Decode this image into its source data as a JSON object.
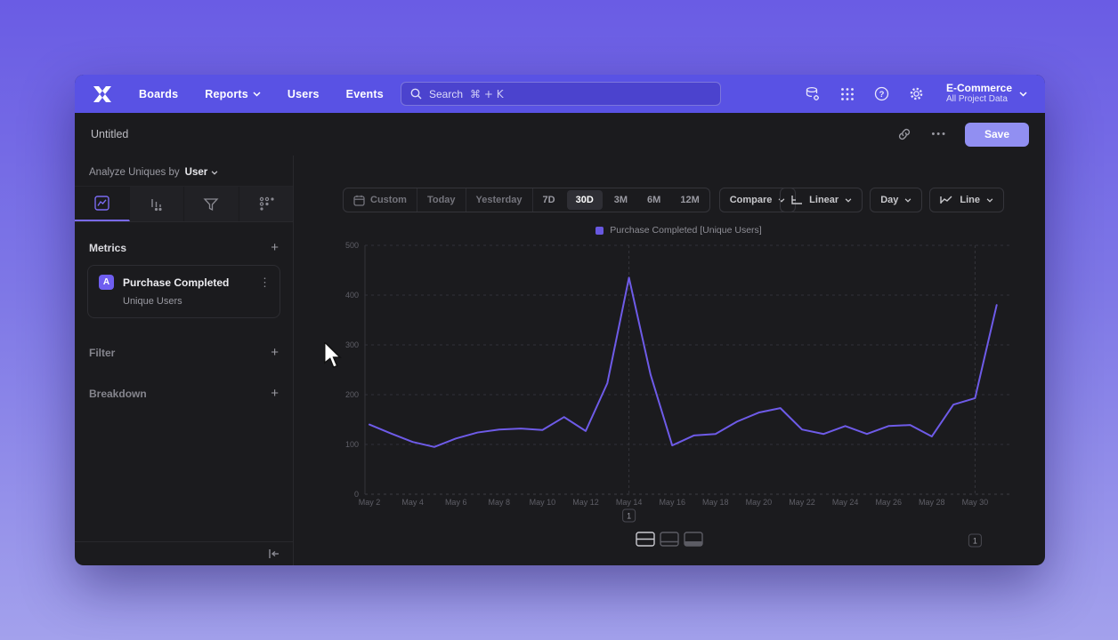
{
  "topnav": {
    "items": [
      {
        "label": "Boards"
      },
      {
        "label": "Reports",
        "has_chevron": true
      },
      {
        "label": "Users"
      },
      {
        "label": "Events"
      }
    ],
    "search": {
      "placeholder": "Search",
      "shortcut": "⌘ + K"
    },
    "project": {
      "name": "E-Commerce",
      "scope": "All Project Data"
    }
  },
  "report_header": {
    "title": "Untitled",
    "ellipsis": "•••",
    "save_label": "Save"
  },
  "sidebar": {
    "analyze_prefix": "Analyze Uniques by",
    "analyze_value": "User",
    "tabs": [
      "insights",
      "bar-report",
      "funnels",
      "flows"
    ],
    "active_tab": "insights",
    "metrics_label": "Metrics",
    "filter_label": "Filter",
    "breakdown_label": "Breakdown",
    "add_symbol": "+",
    "kebab_symbol": "⋮",
    "metric": {
      "badge": "A",
      "name": "Purchase Completed",
      "type": "Unique Users"
    }
  },
  "toolbar": {
    "ranges": [
      "Custom",
      "Today",
      "Yesterday",
      "7D",
      "30D",
      "3M",
      "6M",
      "12M"
    ],
    "active_range": "30D",
    "compare_label": "Compare",
    "scale_label": "Linear",
    "interval_label": "Day",
    "chart_type_label": "Line"
  },
  "chart_data": {
    "type": "line",
    "legend_position": "top-center",
    "grid": "dashed-horizontal",
    "ylim": [
      0,
      500
    ],
    "yticks": [
      0,
      100,
      200,
      300,
      400,
      500
    ],
    "xtick_every": 2,
    "x": [
      "May 2",
      "May 3",
      "May 4",
      "May 5",
      "May 6",
      "May 7",
      "May 8",
      "May 9",
      "May 10",
      "May 11",
      "May 12",
      "May 13",
      "May 14",
      "May 15",
      "May 16",
      "May 17",
      "May 18",
      "May 19",
      "May 20",
      "May 21",
      "May 22",
      "May 23",
      "May 24",
      "May 25",
      "May 26",
      "May 27",
      "May 28",
      "May 29",
      "May 30",
      "May 31"
    ],
    "series": [
      {
        "name": "Purchase Completed [Unique Users]",
        "color": "#6e5be8",
        "values": [
          140,
          122,
          105,
          95,
          112,
          124,
          130,
          132,
          129,
          155,
          127,
          223,
          435,
          240,
          98,
          118,
          121,
          146,
          164,
          173,
          130,
          121,
          137,
          121,
          137,
          139,
          116,
          180,
          193,
          380
        ]
      }
    ],
    "annotations": [
      {
        "label": "1",
        "x": "May 14",
        "row": 0
      },
      {
        "label": "1",
        "x": "May 30",
        "row": 1
      }
    ]
  },
  "colors": {
    "accent_purple": "#6e5be8",
    "topnav_purple": "#5952e4",
    "save_button": "#918ff2",
    "grid_line": "#32323a",
    "axis_text": "#5f5f67"
  },
  "icons": {
    "logo": "mixpanel-x",
    "search": "magnifier",
    "shortcut": "command-key",
    "nav_tools": [
      "data-definitions",
      "apps-grid",
      "help-circle",
      "settings-gear"
    ],
    "report_actions": [
      "link",
      "more-ellipsis"
    ],
    "sidebar_tabs": [
      "line-chart-box",
      "bar-chart",
      "funnel",
      "flow-dots"
    ],
    "toolbar": [
      "calendar",
      "axis-scale",
      "line-zigzag",
      "chevron-down"
    ],
    "layout_toggles": [
      "split-view",
      "chart-view",
      "table-view"
    ],
    "collapse": "collapse-panel-left",
    "cursor": "mouse-arrow"
  }
}
